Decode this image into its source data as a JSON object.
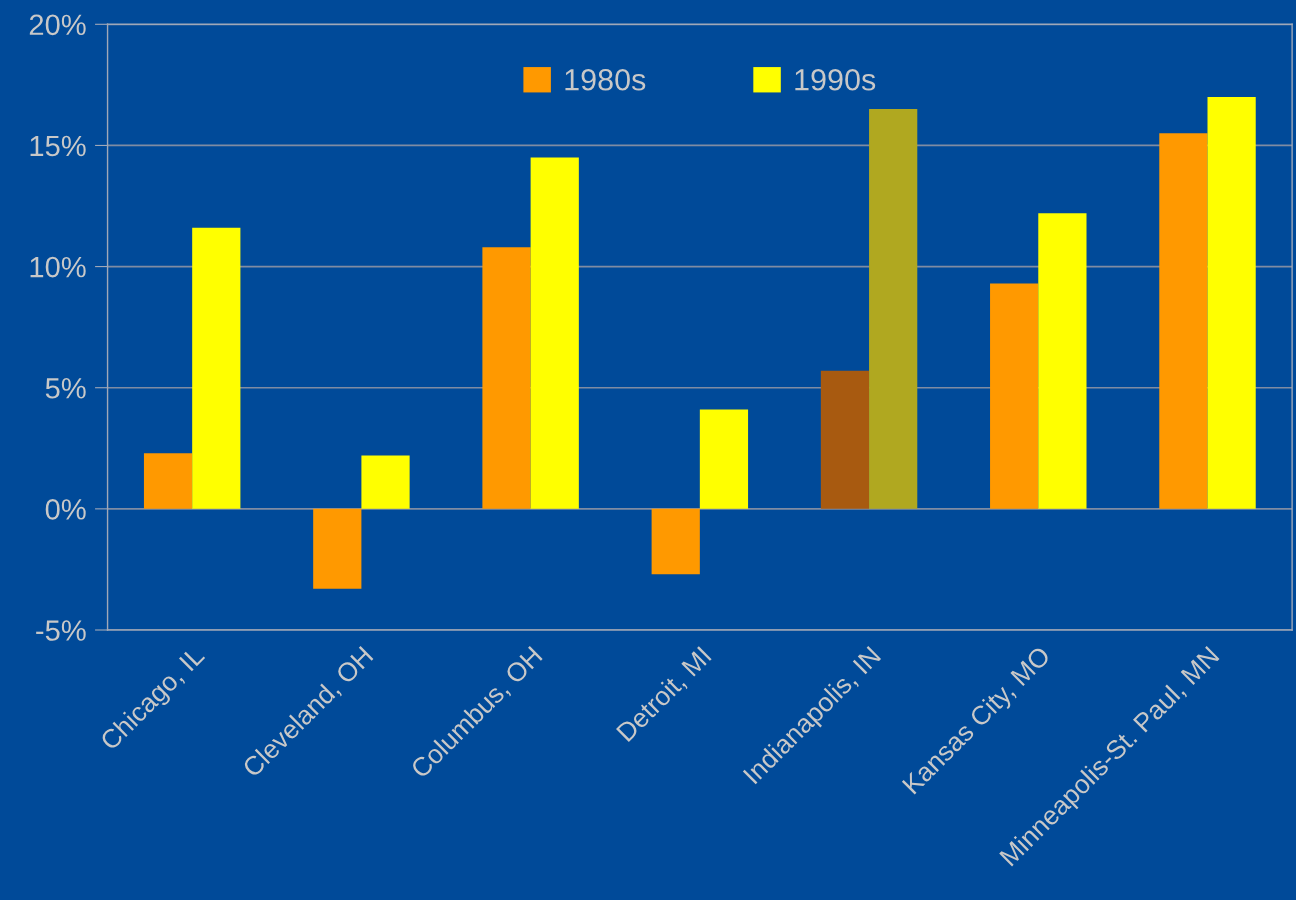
{
  "chart_data": {
    "type": "bar",
    "categories": [
      "Chicago, IL",
      "Cleveland, OH",
      "Columbus, OH",
      "Detroit, MI",
      "Indianapolis, IN",
      "Kansas City, MO",
      "Minneapolis-St. Paul, MN"
    ],
    "series": [
      {
        "name": "1980s",
        "color": "#ff9900",
        "colors": [
          "#ff9900",
          "#ff9900",
          "#ff9900",
          "#ff9900",
          "#a85a10",
          "#ff9900",
          "#ff9900"
        ],
        "values": [
          2.3,
          -3.3,
          10.8,
          -2.7,
          5.7,
          9.3,
          15.5
        ]
      },
      {
        "name": "1990s",
        "color": "#ffff00",
        "colors": [
          "#ffff00",
          "#ffff00",
          "#ffff00",
          "#ffff00",
          "#b0a820",
          "#ffff00",
          "#ffff00"
        ],
        "values": [
          11.6,
          2.2,
          14.5,
          4.1,
          16.5,
          12.2,
          17.0
        ]
      }
    ],
    "ylim": [
      -5,
      20
    ],
    "yticks": [
      {
        "value": -5,
        "label": "-5%"
      },
      {
        "value": 0,
        "label": "0%"
      },
      {
        "value": 5,
        "label": "5%"
      },
      {
        "value": 10,
        "label": "10%"
      },
      {
        "value": 15,
        "label": "15%"
      },
      {
        "value": 20,
        "label": "20%"
      }
    ],
    "grid": "y",
    "legend": "top"
  }
}
